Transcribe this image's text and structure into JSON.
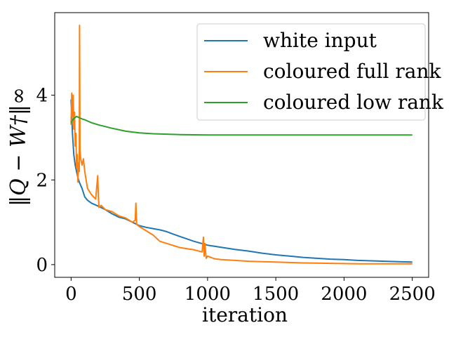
{
  "chart_data": {
    "type": "line",
    "title": "",
    "xlabel": "iteration",
    "ylabel": "‖Q − W†‖∞",
    "xlim": [
      -120,
      2620
    ],
    "ylim": [
      -0.3,
      5.95
    ],
    "xticks": [
      0,
      500,
      1000,
      1500,
      2000,
      2500
    ],
    "xtick_labels": [
      "0",
      "500",
      "1000",
      "1500",
      "2000",
      "2500"
    ],
    "yticks": [
      0,
      2,
      4
    ],
    "ytick_labels": [
      "0",
      "2",
      "4"
    ],
    "grid": false,
    "legend_position": "top-right",
    "series": [
      {
        "name": "white input",
        "color": "#1f77b4",
        "x": [
          0,
          10,
          20,
          30,
          40,
          50,
          60,
          80,
          100,
          120,
          150,
          200,
          250,
          300,
          350,
          400,
          450,
          500,
          550,
          600,
          650,
          700,
          750,
          800,
          900,
          1000,
          1100,
          1200,
          1300,
          1400,
          1500,
          1600,
          1700,
          1800,
          1900,
          2000,
          2100,
          2200,
          2300,
          2400,
          2500
        ],
        "y": [
          3.9,
          3.1,
          2.6,
          2.35,
          2.2,
          2.05,
          1.95,
          1.8,
          1.6,
          1.52,
          1.45,
          1.38,
          1.3,
          1.2,
          1.12,
          1.08,
          1.0,
          0.92,
          0.88,
          0.85,
          0.82,
          0.78,
          0.72,
          0.66,
          0.55,
          0.46,
          0.41,
          0.36,
          0.32,
          0.27,
          0.23,
          0.2,
          0.17,
          0.15,
          0.13,
          0.12,
          0.1,
          0.09,
          0.08,
          0.07,
          0.06
        ]
      },
      {
        "name": "coloured full rank",
        "color": "#ff7f0e",
        "x": [
          0,
          5,
          10,
          15,
          20,
          25,
          30,
          35,
          40,
          45,
          50,
          55,
          60,
          62,
          65,
          70,
          80,
          90,
          100,
          120,
          150,
          180,
          195,
          200,
          205,
          220,
          250,
          300,
          350,
          400,
          450,
          470,
          475,
          480,
          500,
          550,
          600,
          650,
          700,
          800,
          900,
          960,
          970,
          975,
          980,
          990,
          1000,
          1050,
          1100,
          1200,
          1300,
          1400,
          1500,
          1600,
          1700,
          1800,
          1900,
          2000,
          2100,
          2200,
          2300,
          2400,
          2500
        ],
        "y": [
          3.3,
          4.05,
          3.5,
          4.0,
          3.2,
          3.6,
          2.8,
          3.1,
          2.3,
          2.6,
          1.95,
          2.4,
          2.2,
          5.65,
          2.7,
          2.5,
          2.35,
          2.5,
          2.2,
          1.8,
          1.65,
          1.55,
          2.1,
          1.6,
          1.35,
          1.4,
          1.3,
          1.25,
          1.15,
          1.1,
          1.0,
          1.05,
          1.45,
          0.95,
          0.9,
          0.8,
          0.7,
          0.55,
          0.5,
          0.4,
          0.35,
          0.3,
          0.65,
          0.2,
          0.5,
          0.15,
          0.2,
          0.14,
          0.12,
          0.1,
          0.08,
          0.07,
          0.06,
          0.05,
          0.04,
          0.035,
          0.03,
          0.025,
          0.02,
          0.02,
          0.02,
          0.02,
          0.02
        ]
      },
      {
        "name": "coloured low rank",
        "color": "#2ca02c",
        "x": [
          0,
          20,
          40,
          60,
          80,
          100,
          150,
          200,
          300,
          400,
          500,
          600,
          700,
          800,
          1000,
          1200,
          1500,
          2000,
          2500
        ],
        "y": [
          3.35,
          3.45,
          3.5,
          3.47,
          3.44,
          3.42,
          3.35,
          3.3,
          3.22,
          3.15,
          3.11,
          3.09,
          3.08,
          3.07,
          3.06,
          3.06,
          3.06,
          3.06,
          3.06
        ]
      }
    ]
  }
}
